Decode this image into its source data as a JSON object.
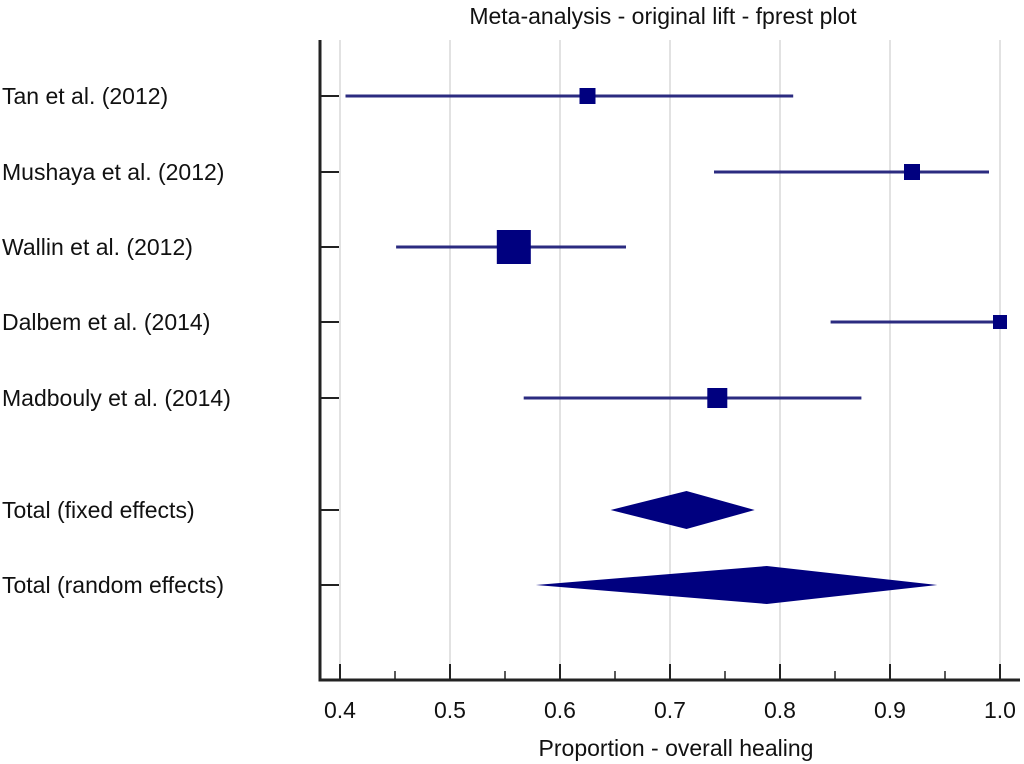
{
  "chart_data": {
    "type": "forest",
    "title": "Meta-analysis - original lift - fprest plot",
    "xlabel": "Proportion - overall healing",
    "ylabel": "",
    "xlim": [
      0.4,
      1.0
    ],
    "xticks": [
      "0.4",
      "0.5",
      "0.6",
      "0.7",
      "0.8",
      "0.9",
      "1.0"
    ],
    "xtick_values": [
      0.4,
      0.5,
      0.6,
      0.7,
      0.8,
      0.9,
      1.0
    ],
    "minor_ticks": [
      0.45,
      0.55,
      0.65,
      0.75,
      0.85,
      0.95
    ],
    "grid": true,
    "marker_color": "#00007f",
    "line_color": "#2b2b80",
    "studies": [
      {
        "label": "Tan et al. (2012)",
        "estimate": 0.625,
        "lower": 0.405,
        "upper": 0.812,
        "weight": 0.16
      },
      {
        "label": "Mushaya et al. (2012)",
        "estimate": 0.92,
        "lower": 0.74,
        "upper": 0.99,
        "weight": 0.16
      },
      {
        "label": "Wallin et al. (2012)",
        "estimate": 0.558,
        "lower": 0.451,
        "upper": 0.66,
        "weight": 0.34
      },
      {
        "label": "Dalbem et al. (2014)",
        "estimate": 1.0,
        "lower": 0.846,
        "upper": 1.0,
        "weight": 0.14
      },
      {
        "label": "Madbouly et al. (2014)",
        "estimate": 0.743,
        "lower": 0.567,
        "upper": 0.874,
        "weight": 0.2
      }
    ],
    "pooled": [
      {
        "label": "Total (fixed effects)",
        "estimate": 0.715,
        "lower": 0.646,
        "upper": 0.777
      },
      {
        "label": "Total (random effects)",
        "estimate": 0.788,
        "lower": 0.578,
        "upper": 0.943
      }
    ]
  }
}
